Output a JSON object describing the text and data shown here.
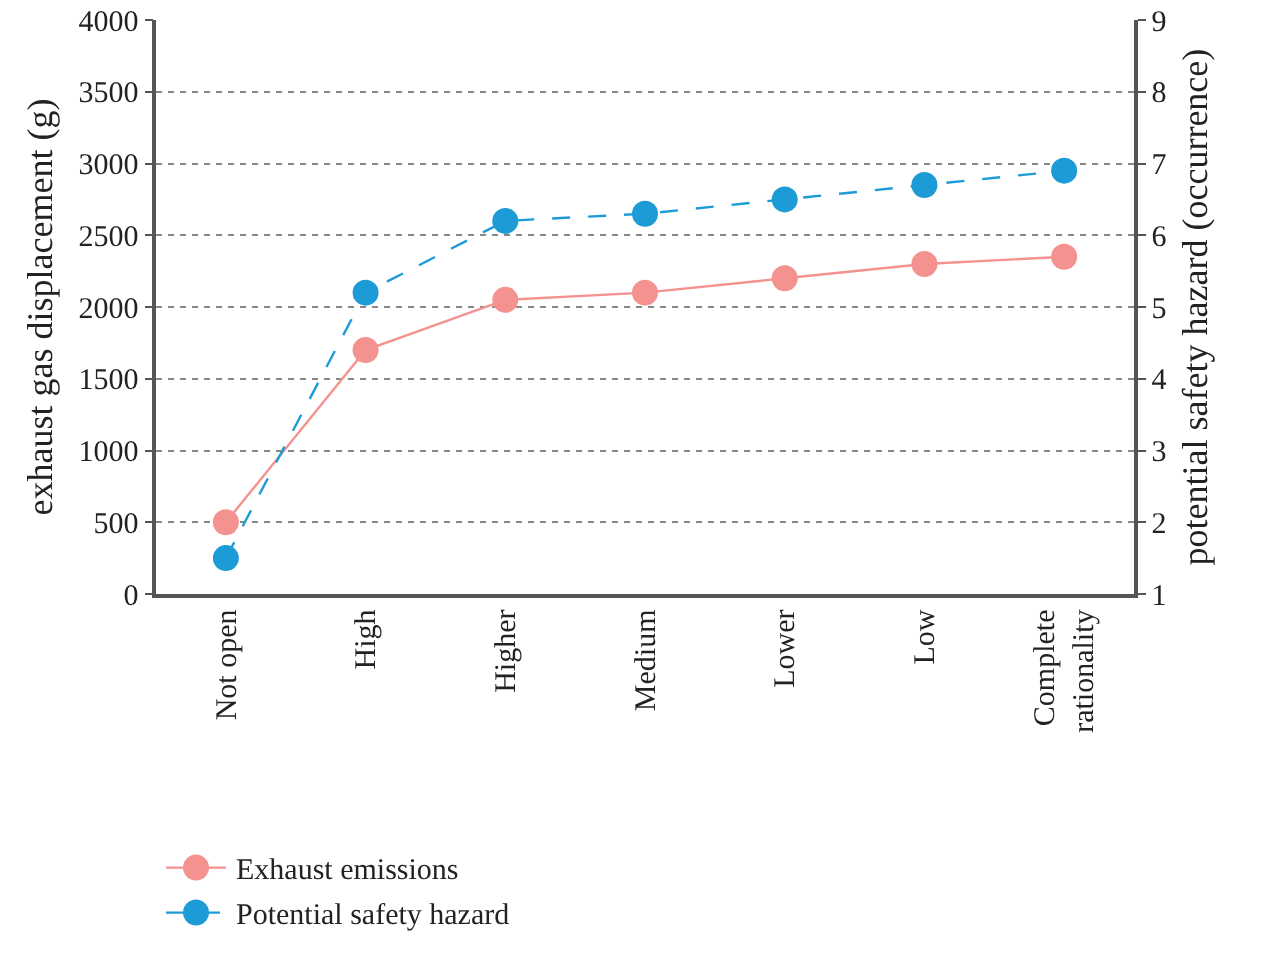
{
  "chart_data": {
    "type": "line",
    "ylabel": "exhaust gas displacement (g)",
    "y2label": "potential safety hazard (occurrence)",
    "categories": [
      "Not open",
      "High",
      "Higher",
      "Medium",
      "Lower",
      "Low",
      "Complete rationality"
    ],
    "series": [
      {
        "name": "Exhaust emissions",
        "color": "#f4928f",
        "values": [
          500,
          1700,
          2050,
          2100,
          2200,
          2300,
          2350
        ],
        "line_style": "solid"
      },
      {
        "name": "Potential safety hazard",
        "color": "#1c9bd7",
        "values": [
          1.5,
          5.2,
          6.2,
          6.3,
          6.5,
          6.7,
          6.9
        ],
        "axis": "y2",
        "line_style": "dashed"
      }
    ],
    "ylim": [
      0,
      4000
    ],
    "yticks": [
      0,
      500,
      1000,
      1500,
      2000,
      2500,
      3000,
      3500,
      4000
    ],
    "y2lim": [
      1,
      9
    ],
    "y2ticks": [
      1,
      2,
      3,
      4,
      5,
      6,
      7,
      8,
      9
    ],
    "grid": "y",
    "legend": "bottom left",
    "marker": "circle"
  }
}
